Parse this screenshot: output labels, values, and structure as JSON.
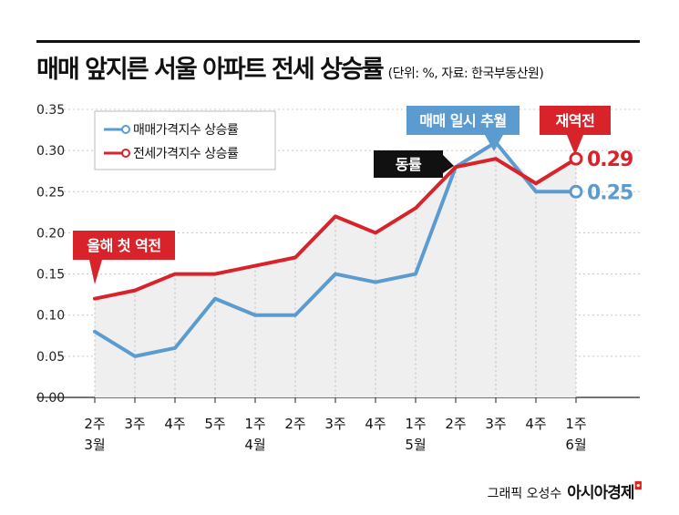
{
  "header": {
    "title": "매매 앞지른 서울 아파트 전세 상승률",
    "subtitle": "(단위: %, 자료: 한국부동산원)"
  },
  "footer": {
    "credit": "그래픽 오성수",
    "brand": "아시아경제"
  },
  "colors": {
    "sale": "#5b9bd0",
    "jeonse": "#d8232a",
    "callout_dark": "#111111",
    "fill": "#efefef"
  },
  "chart_data": {
    "type": "line",
    "title": "매매 앞지른 서울 아파트 전세 상승률",
    "ylim": [
      0,
      0.35
    ],
    "yticks": [
      "0.00",
      "0.05",
      "0.10",
      "0.15",
      "0.20",
      "0.25",
      "0.30",
      "0.35"
    ],
    "categories": [
      [
        "2주",
        "3월"
      ],
      [
        "3주",
        ""
      ],
      [
        "4주",
        ""
      ],
      [
        "5주",
        ""
      ],
      [
        "1주",
        "4월"
      ],
      [
        "2주",
        ""
      ],
      [
        "3주",
        ""
      ],
      [
        "4주",
        ""
      ],
      [
        "1주",
        "5월"
      ],
      [
        "2주",
        ""
      ],
      [
        "3주",
        ""
      ],
      [
        "4주",
        ""
      ],
      [
        "1주",
        "6월"
      ]
    ],
    "series": [
      {
        "name": "매매가격지수 상승률",
        "color": "#5b9bd0",
        "values": [
          0.08,
          0.05,
          0.06,
          0.12,
          0.1,
          0.1,
          0.15,
          0.14,
          0.15,
          0.28,
          0.31,
          0.25,
          0.25
        ]
      },
      {
        "name": "전세가격지수 상승률",
        "color": "#d8232a",
        "values": [
          0.12,
          0.13,
          0.15,
          0.15,
          0.16,
          0.17,
          0.22,
          0.2,
          0.23,
          0.28,
          0.29,
          0.26,
          0.29
        ]
      }
    ],
    "end_labels": [
      "0.25",
      "0.29"
    ],
    "legend": {
      "position": "top-left"
    },
    "annotations": [
      {
        "text": "올해 첫 역전",
        "style": "red"
      },
      {
        "text": "동률",
        "style": "dark"
      },
      {
        "text": "매매 일시 추월",
        "style": "blue"
      },
      {
        "text": "재역전",
        "style": "red"
      }
    ]
  }
}
